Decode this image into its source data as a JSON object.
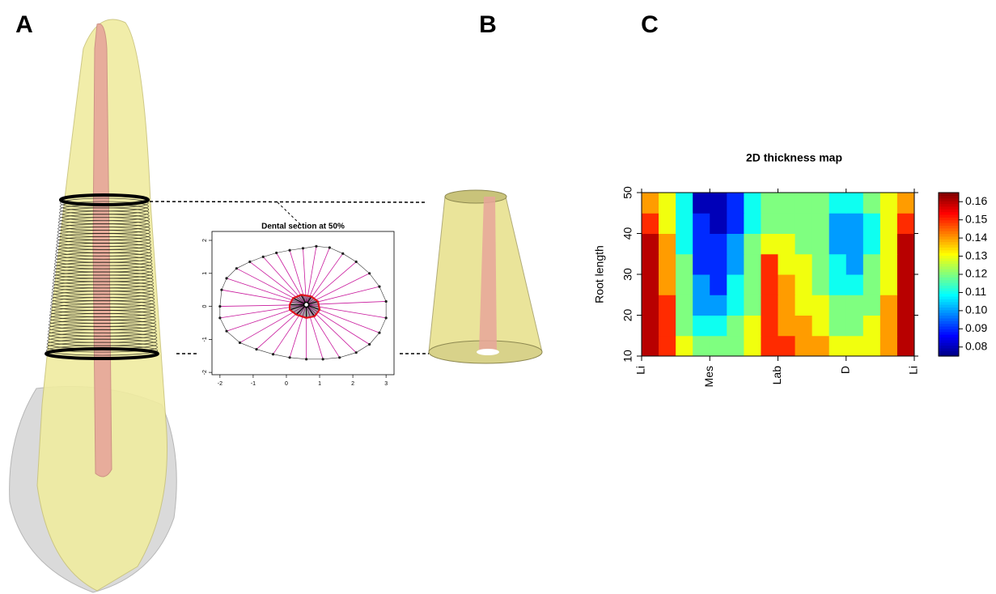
{
  "panel_labels": [
    "A",
    "B",
    "C"
  ],
  "chart_data": [
    {
      "type": "scatter",
      "title": "Dental section at 50%",
      "xlim": [
        -2.24,
        3.24
      ],
      "ylim": [
        -2.07,
        2.27
      ],
      "xticks": [
        -2,
        -1,
        0,
        1,
        2,
        3
      ],
      "yticks": [
        -2,
        -1,
        0,
        1,
        2
      ],
      "center_x": 0.6,
      "center_y": 0.05,
      "outer_x": [
        -2.0,
        -1.95,
        -1.8,
        -1.5,
        -1.1,
        -0.7,
        -0.3,
        0.1,
        0.5,
        0.9,
        1.3,
        1.7,
        2.1,
        2.5,
        2.8,
        3.0,
        3.0,
        2.8,
        2.5,
        2.1,
        1.6,
        1.1,
        0.6,
        0.1,
        -0.4,
        -0.9,
        -1.4,
        -1.8,
        -2.0
      ],
      "outer_y": [
        0.0,
        0.5,
        0.85,
        1.15,
        1.35,
        1.5,
        1.62,
        1.7,
        1.76,
        1.82,
        1.78,
        1.6,
        1.35,
        1.0,
        0.6,
        0.15,
        -0.35,
        -0.8,
        -1.15,
        -1.4,
        -1.55,
        -1.6,
        -1.6,
        -1.55,
        -1.45,
        -1.3,
        -1.1,
        -0.75,
        -0.35
      ],
      "inner_x": [
        0.1,
        0.2,
        0.45,
        0.75,
        0.95,
        1.0,
        0.85,
        0.6,
        0.3,
        0.1
      ],
      "inner_y": [
        0.05,
        0.25,
        0.35,
        0.3,
        0.15,
        -0.1,
        -0.3,
        -0.35,
        -0.25,
        -0.1
      ],
      "outer_color": "#c8189c",
      "inner_color": "#e0141e"
    },
    {
      "type": "heatmap",
      "title": "2D thickness map",
      "ylabel": "Root length",
      "xlim": [
        0,
        4
      ],
      "ylim": [
        10,
        50
      ],
      "zlim": [
        0.075,
        0.165
      ],
      "colormap": "jet",
      "xticks": [
        {
          "value": 0,
          "label": "Li"
        },
        {
          "value": 1,
          "label": "Mes"
        },
        {
          "value": 2,
          "label": "Lab"
        },
        {
          "value": 3,
          "label": "D"
        },
        {
          "value": 4,
          "label": "Li"
        }
      ],
      "yticks": [
        10,
        20,
        30,
        40,
        50
      ],
      "zticks": [
        0.08,
        0.09,
        {
          "value": 0.1,
          "label": "0.10"
        },
        0.11,
        0.12,
        0.13,
        0.14,
        0.15,
        0.16
      ],
      "xbins": [
        0,
        0.25,
        0.5,
        0.75,
        1,
        1.25,
        1.5,
        1.75,
        2,
        2.25,
        2.5,
        2.75,
        3,
        3.25,
        3.5,
        3.75,
        4
      ],
      "ybins": [
        10,
        15,
        20,
        25,
        30,
        35,
        40,
        45,
        50
      ],
      "values": [
        [
          0.16,
          0.15,
          0.13,
          0.12,
          0.12,
          0.12,
          0.13,
          0.15,
          0.15,
          0.14,
          0.14,
          0.13,
          0.13,
          0.13,
          0.14,
          0.16
        ],
        [
          0.16,
          0.15,
          0.12,
          0.11,
          0.11,
          0.12,
          0.13,
          0.15,
          0.14,
          0.14,
          0.13,
          0.12,
          0.12,
          0.13,
          0.14,
          0.16
        ],
        [
          0.16,
          0.15,
          0.12,
          0.1,
          0.1,
          0.11,
          0.12,
          0.15,
          0.14,
          0.13,
          0.13,
          0.12,
          0.12,
          0.12,
          0.14,
          0.16
        ],
        [
          0.16,
          0.14,
          0.12,
          0.1,
          0.09,
          0.11,
          0.12,
          0.15,
          0.14,
          0.13,
          0.12,
          0.11,
          0.11,
          0.12,
          0.13,
          0.16
        ],
        [
          0.16,
          0.14,
          0.12,
          0.09,
          0.09,
          0.1,
          0.12,
          0.15,
          0.13,
          0.13,
          0.12,
          0.11,
          0.1,
          0.12,
          0.13,
          0.16
        ],
        [
          0.16,
          0.14,
          0.11,
          0.09,
          0.09,
          0.1,
          0.12,
          0.13,
          0.13,
          0.12,
          0.12,
          0.1,
          0.1,
          0.11,
          0.13,
          0.16
        ],
        [
          0.15,
          0.13,
          0.11,
          0.09,
          0.08,
          0.09,
          0.11,
          0.12,
          0.12,
          0.12,
          0.12,
          0.1,
          0.1,
          0.11,
          0.13,
          0.15
        ],
        [
          0.14,
          0.13,
          0.11,
          0.08,
          0.08,
          0.09,
          0.11,
          0.12,
          0.12,
          0.12,
          0.12,
          0.11,
          0.11,
          0.12,
          0.13,
          0.14
        ]
      ]
    }
  ]
}
